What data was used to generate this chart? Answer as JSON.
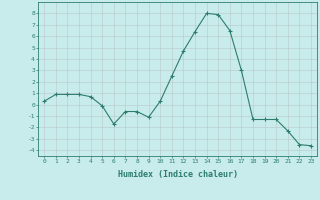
{
  "x": [
    0,
    1,
    2,
    3,
    4,
    5,
    6,
    7,
    8,
    9,
    10,
    11,
    12,
    13,
    14,
    15,
    16,
    17,
    18,
    19,
    20,
    21,
    22,
    23
  ],
  "y": [
    0.3,
    0.9,
    0.9,
    0.9,
    0.7,
    -0.1,
    -1.7,
    -0.6,
    -0.6,
    -1.1,
    0.3,
    2.5,
    4.7,
    6.4,
    8.0,
    7.9,
    6.5,
    3.0,
    -1.3,
    -1.3,
    -1.3,
    -2.3,
    -3.5,
    -3.6
  ],
  "line_color": "#2d7d6e",
  "marker": "+",
  "marker_color": "#2d7d6e",
  "bg_color": "#c8ecec",
  "grid_major_color": "#b0b0b0",
  "grid_minor_color": "#d0e8e8",
  "xlabel": "Humidex (Indice chaleur)",
  "xlabel_color": "#2d7d6e",
  "xlim": [
    -0.5,
    23.5
  ],
  "ylim": [
    -4.5,
    9.0
  ],
  "yticks": [
    -4,
    -3,
    -2,
    -1,
    0,
    1,
    2,
    3,
    4,
    5,
    6,
    7,
    8
  ],
  "xticks": [
    0,
    1,
    2,
    3,
    4,
    5,
    6,
    7,
    8,
    9,
    10,
    11,
    12,
    13,
    14,
    15,
    16,
    17,
    18,
    19,
    20,
    21,
    22,
    23
  ],
  "tick_color": "#2d7d6e",
  "spine_color": "#2d7d6e",
  "figsize": [
    3.2,
    2.0
  ],
  "dpi": 100
}
